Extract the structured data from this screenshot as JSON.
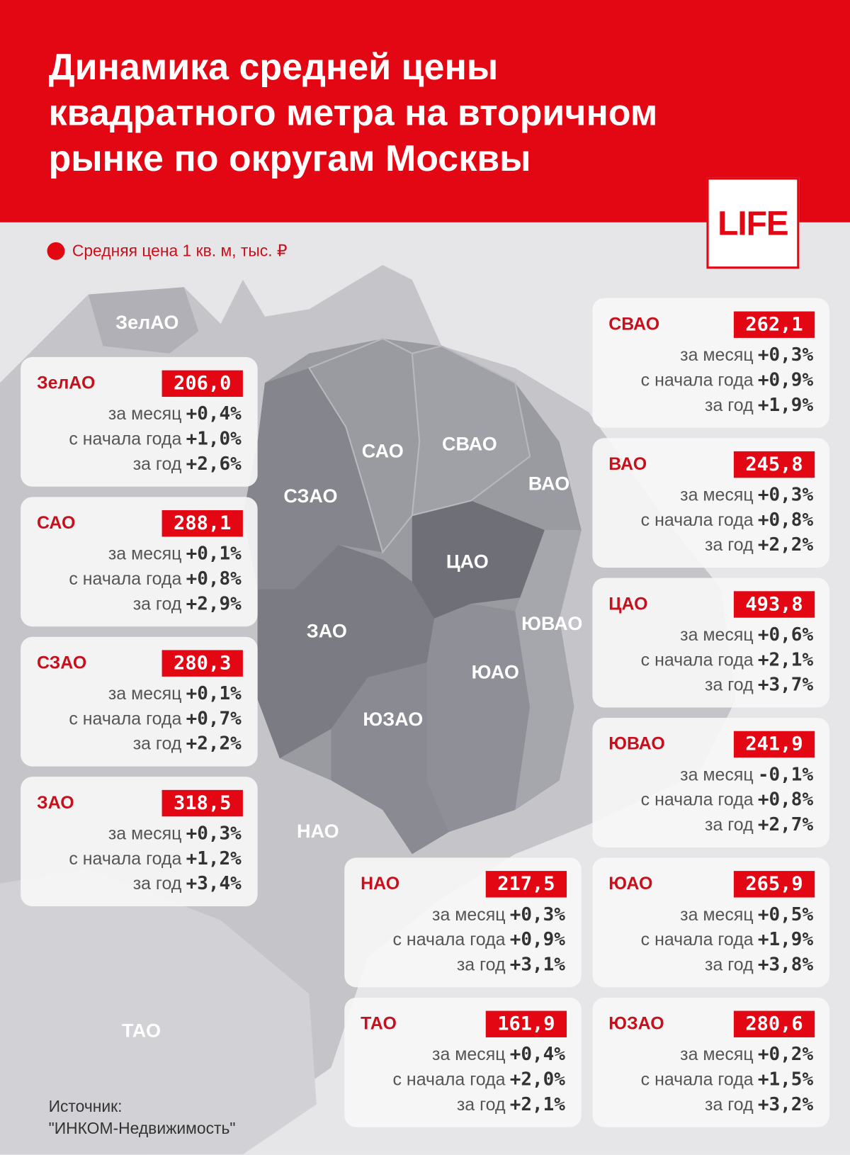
{
  "header": {
    "title_lines": [
      "Динамика средней цены",
      "квадратного метра на вторичном",
      "рынке по округам Москвы"
    ],
    "brand": "LIFE"
  },
  "legend": "Средняя цена 1 кв. м, тыс. ₽",
  "row_labels": [
    "за месяц",
    "с начала года",
    "за год"
  ],
  "map_labels": [
    "ЗелАО",
    "САО",
    "СВАО",
    "СЗАО",
    "ВАО",
    "ЦАО",
    "ЗАО",
    "ЮВАО",
    "ЮАО",
    "ЮЗАО",
    "НАО",
    "ТАО"
  ],
  "cards": [
    {
      "name": "ЗелАО",
      "price": "206,0",
      "changes": [
        "+0,4%",
        "+1,0%",
        "+2,6%"
      ]
    },
    {
      "name": "САО",
      "price": "288,1",
      "changes": [
        "+0,1%",
        "+0,8%",
        "+2,9%"
      ]
    },
    {
      "name": "СЗАО",
      "price": "280,3",
      "changes": [
        "+0,1%",
        "+0,7%",
        "+2,2%"
      ]
    },
    {
      "name": "ЗАО",
      "price": "318,5",
      "changes": [
        "+0,3%",
        "+1,2%",
        "+3,4%"
      ]
    },
    {
      "name": "СВАО",
      "price": "262,1",
      "changes": [
        "+0,3%",
        "+0,9%",
        "+1,9%"
      ]
    },
    {
      "name": "ВАО",
      "price": "245,8",
      "changes": [
        "+0,3%",
        "+0,8%",
        "+2,2%"
      ]
    },
    {
      "name": "ЦАО",
      "price": "493,8",
      "changes": [
        "+0,6%",
        "+2,1%",
        "+3,7%"
      ]
    },
    {
      "name": "ЮВАО",
      "price": "241,9",
      "changes": [
        "-0,1%",
        "+0,8%",
        "+2,7%"
      ]
    },
    {
      "name": "ЮАО",
      "price": "265,9",
      "changes": [
        "+0,5%",
        "+1,9%",
        "+3,8%"
      ]
    },
    {
      "name": "ЮЗАО",
      "price": "280,6",
      "changes": [
        "+0,2%",
        "+1,5%",
        "+3,2%"
      ]
    },
    {
      "name": "НАО",
      "price": "217,5",
      "changes": [
        "+0,3%",
        "+0,9%",
        "+3,1%"
      ]
    },
    {
      "name": "ТАО",
      "price": "161,9",
      "changes": [
        "+0,4%",
        "+2,0%",
        "+2,1%"
      ]
    }
  ],
  "source": [
    "Источник:",
    "\"ИНКОМ-Недвижимость\""
  ]
}
